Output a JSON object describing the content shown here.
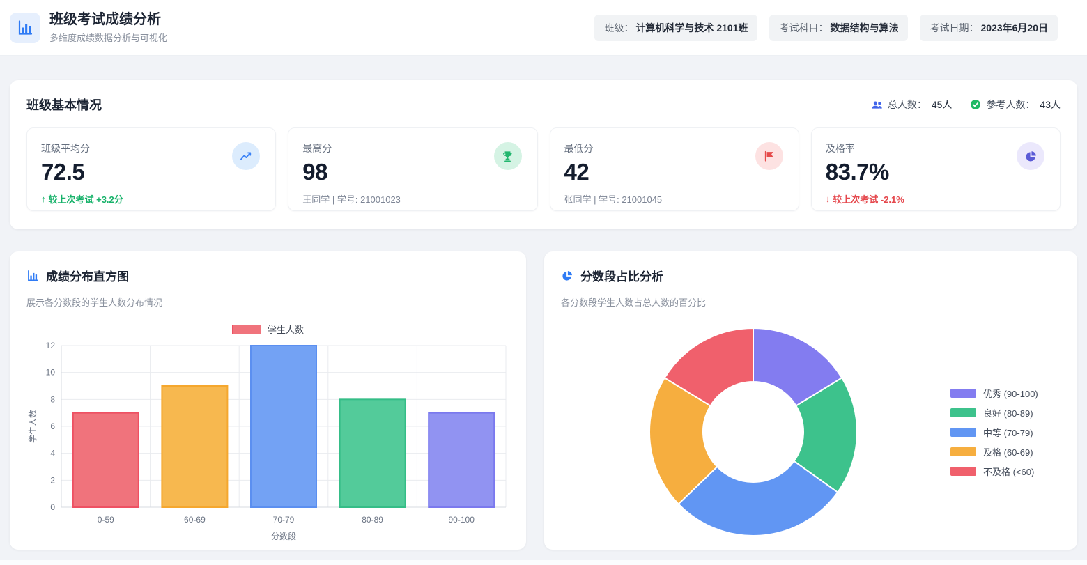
{
  "colors": {
    "accent": "#2F7BF5",
    "positive_green": "#17B26A",
    "negative_red": "#E5484D",
    "page_background": "#F1F3F7"
  },
  "header": {
    "title": "班级考试成绩分析",
    "subtitle": "多维度成绩数据分析与可视化",
    "badges": [
      {
        "label": "班级：",
        "value": "计算机科学与技术 2101班"
      },
      {
        "label": "考试科目：",
        "value": "数据结构与算法"
      },
      {
        "label": "考试日期：",
        "value": "2023年6月20日"
      }
    ]
  },
  "overview": {
    "title": "班级基本情况",
    "total_label": "总人数：",
    "total_value": "45人",
    "attended_label": "参考人数：",
    "attended_value": "43人",
    "cards": [
      {
        "label": "班级平均分",
        "value": "72.5",
        "arrow": "↑",
        "change": "较上次考试 +3.2分"
      },
      {
        "label": "最高分",
        "value": "98",
        "detail": "王同学 | 学号: 21001023"
      },
      {
        "label": "最低分",
        "value": "42",
        "detail": "张同学 | 学号: 21001045"
      },
      {
        "label": "及格率",
        "value": "83.7%",
        "arrow": "↓",
        "change": "较上次考试 -2.1%"
      }
    ]
  },
  "chart_data": [
    {
      "type": "bar",
      "title": "成绩分布直方图",
      "subtitle": "展示各分数段的学生人数分布情况",
      "legend_label": "学生人数",
      "legend_position": "top",
      "categories": [
        "0-59",
        "60-69",
        "70-79",
        "80-89",
        "90-100"
      ],
      "series": [
        {
          "name": "学生人数",
          "values": [
            7,
            9,
            12,
            8,
            7
          ]
        }
      ],
      "bar_fill_colors": [
        "#F0737C",
        "#F7B84F",
        "#73A2F4",
        "#53CB9A",
        "#9193F2"
      ],
      "bar_border_colors": [
        "#EE5163",
        "#F5A72E",
        "#5B8FF0",
        "#35BD87",
        "#7B79EE"
      ],
      "xlabel": "分数段",
      "ylabel": "学生人数",
      "ylim": [
        0,
        12
      ],
      "yticks": [
        0,
        2,
        4,
        6,
        8,
        10,
        12
      ],
      "grid": true
    },
    {
      "type": "pie",
      "variant": "donut",
      "title": "分数段占比分析",
      "subtitle": "各分数段学生人数占总人数的百分比",
      "labels": [
        "优秀 (90-100)",
        "良好 (80-89)",
        "中等 (70-79)",
        "及格 (60-69)",
        "不及格 (<60)"
      ],
      "values": [
        7,
        8,
        12,
        9,
        7
      ],
      "colors": [
        "#837CF0",
        "#3DC28C",
        "#6196F3",
        "#F6AE3F",
        "#F0606C"
      ],
      "legend_position": "right",
      "start_angle": "top",
      "direction": "clockwise"
    }
  ]
}
